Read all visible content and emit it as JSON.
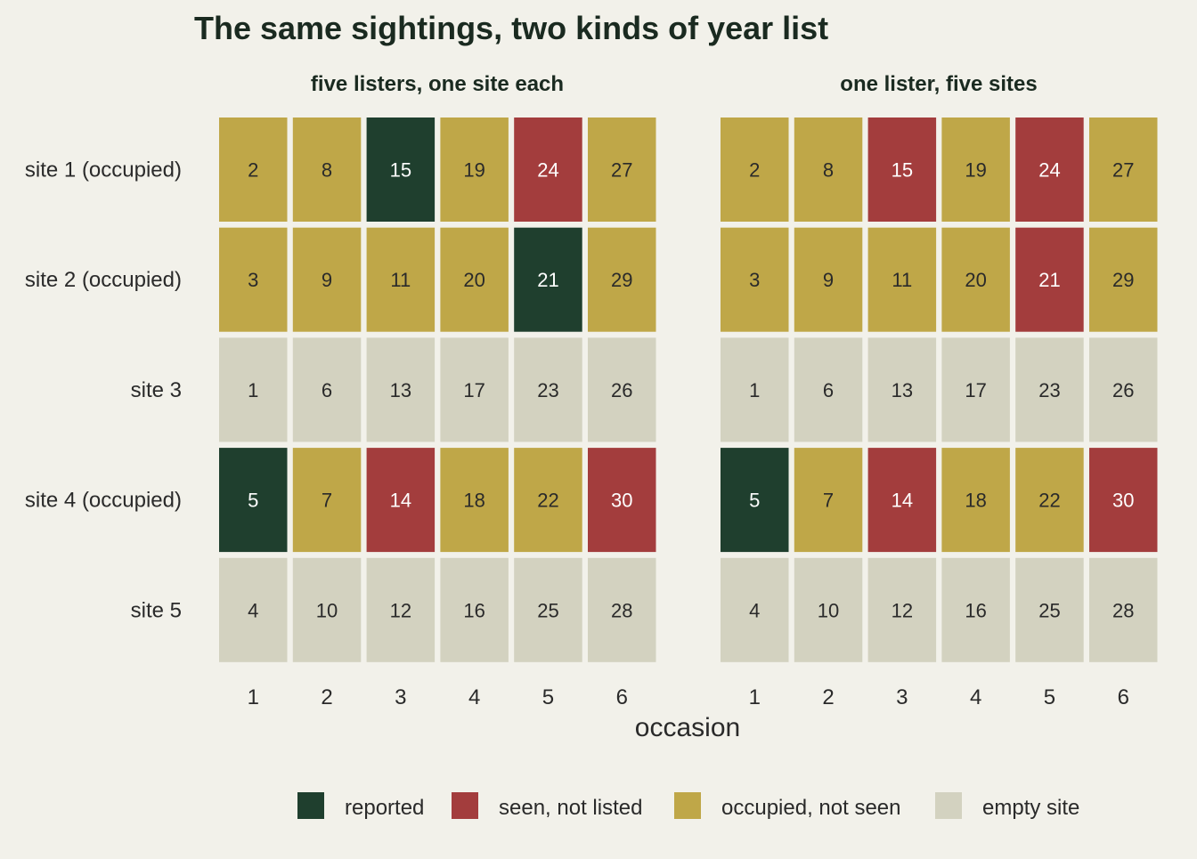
{
  "chart_data": {
    "type": "heatmap",
    "title": "The same sightings, two kinds of year list",
    "xlabel": "occasion",
    "x_categories": [
      "1",
      "2",
      "3",
      "4",
      "5",
      "6"
    ],
    "y_categories": [
      "site 1 (occupied)",
      "site 2 (occupied)",
      "site 3",
      "site 4 (occupied)",
      "site 5"
    ],
    "legend": {
      "position": "bottom",
      "items": [
        {
          "key": "reported",
          "label": "reported",
          "color": "#1f3f2e"
        },
        {
          "key": "seen",
          "label": "seen, not listed",
          "color": "#a33d3d"
        },
        {
          "key": "occupied",
          "label": "occupied, not seen",
          "color": "#bfa748"
        },
        {
          "key": "empty",
          "label": "empty site",
          "color": "#d3d2c0"
        }
      ]
    },
    "panels": [
      {
        "title": "five listers, one site each",
        "cells": [
          [
            {
              "n": "2",
              "s": "occupied"
            },
            {
              "n": "8",
              "s": "occupied"
            },
            {
              "n": "15",
              "s": "reported"
            },
            {
              "n": "19",
              "s": "occupied"
            },
            {
              "n": "24",
              "s": "seen"
            },
            {
              "n": "27",
              "s": "occupied"
            }
          ],
          [
            {
              "n": "3",
              "s": "occupied"
            },
            {
              "n": "9",
              "s": "occupied"
            },
            {
              "n": "11",
              "s": "occupied"
            },
            {
              "n": "20",
              "s": "occupied"
            },
            {
              "n": "21",
              "s": "reported"
            },
            {
              "n": "29",
              "s": "occupied"
            }
          ],
          [
            {
              "n": "1",
              "s": "empty"
            },
            {
              "n": "6",
              "s": "empty"
            },
            {
              "n": "13",
              "s": "empty"
            },
            {
              "n": "17",
              "s": "empty"
            },
            {
              "n": "23",
              "s": "empty"
            },
            {
              "n": "26",
              "s": "empty"
            }
          ],
          [
            {
              "n": "5",
              "s": "reported"
            },
            {
              "n": "7",
              "s": "occupied"
            },
            {
              "n": "14",
              "s": "seen"
            },
            {
              "n": "18",
              "s": "occupied"
            },
            {
              "n": "22",
              "s": "occupied"
            },
            {
              "n": "30",
              "s": "seen"
            }
          ],
          [
            {
              "n": "4",
              "s": "empty"
            },
            {
              "n": "10",
              "s": "empty"
            },
            {
              "n": "12",
              "s": "empty"
            },
            {
              "n": "16",
              "s": "empty"
            },
            {
              "n": "25",
              "s": "empty"
            },
            {
              "n": "28",
              "s": "empty"
            }
          ]
        ]
      },
      {
        "title": "one lister, five sites",
        "cells": [
          [
            {
              "n": "2",
              "s": "occupied"
            },
            {
              "n": "8",
              "s": "occupied"
            },
            {
              "n": "15",
              "s": "seen"
            },
            {
              "n": "19",
              "s": "occupied"
            },
            {
              "n": "24",
              "s": "seen"
            },
            {
              "n": "27",
              "s": "occupied"
            }
          ],
          [
            {
              "n": "3",
              "s": "occupied"
            },
            {
              "n": "9",
              "s": "occupied"
            },
            {
              "n": "11",
              "s": "occupied"
            },
            {
              "n": "20",
              "s": "occupied"
            },
            {
              "n": "21",
              "s": "seen"
            },
            {
              "n": "29",
              "s": "occupied"
            }
          ],
          [
            {
              "n": "1",
              "s": "empty"
            },
            {
              "n": "6",
              "s": "empty"
            },
            {
              "n": "13",
              "s": "empty"
            },
            {
              "n": "17",
              "s": "empty"
            },
            {
              "n": "23",
              "s": "empty"
            },
            {
              "n": "26",
              "s": "empty"
            }
          ],
          [
            {
              "n": "5",
              "s": "reported"
            },
            {
              "n": "7",
              "s": "occupied"
            },
            {
              "n": "14",
              "s": "seen"
            },
            {
              "n": "18",
              "s": "occupied"
            },
            {
              "n": "22",
              "s": "occupied"
            },
            {
              "n": "30",
              "s": "seen"
            }
          ],
          [
            {
              "n": "4",
              "s": "empty"
            },
            {
              "n": "10",
              "s": "empty"
            },
            {
              "n": "12",
              "s": "empty"
            },
            {
              "n": "16",
              "s": "empty"
            },
            {
              "n": "25",
              "s": "empty"
            },
            {
              "n": "28",
              "s": "empty"
            }
          ]
        ]
      }
    ]
  }
}
